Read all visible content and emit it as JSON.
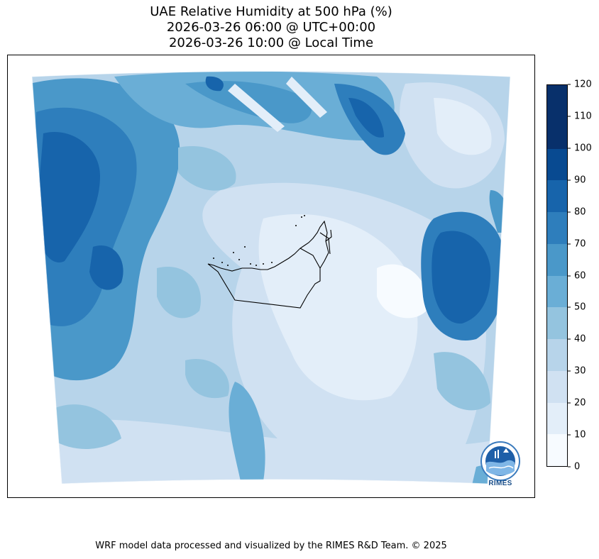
{
  "title": {
    "line1": "UAE Relative Humidity at 500 hPa (%)",
    "line2": "2026-03-26 06:00 @ UTC+00:00",
    "line3": "2026-03-26 10:00 @ Local Time"
  },
  "colorbar": {
    "ticks": [
      "0",
      "10",
      "20",
      "30",
      "40",
      "50",
      "60",
      "70",
      "80",
      "90",
      "100",
      "110",
      "120"
    ],
    "colors": [
      "#f7fbff",
      "#e3eef9",
      "#d0e1f2",
      "#b7d4ea",
      "#94c4df",
      "#6aaed6",
      "#4a98c9",
      "#2e7ebc",
      "#1764ab",
      "#084a91",
      "#08306b",
      "#08306b"
    ]
  },
  "logo": {
    "text": "RIMES"
  },
  "footer": "WRF model data processed and visualized by the RIMES R&D Team. © 2025"
}
